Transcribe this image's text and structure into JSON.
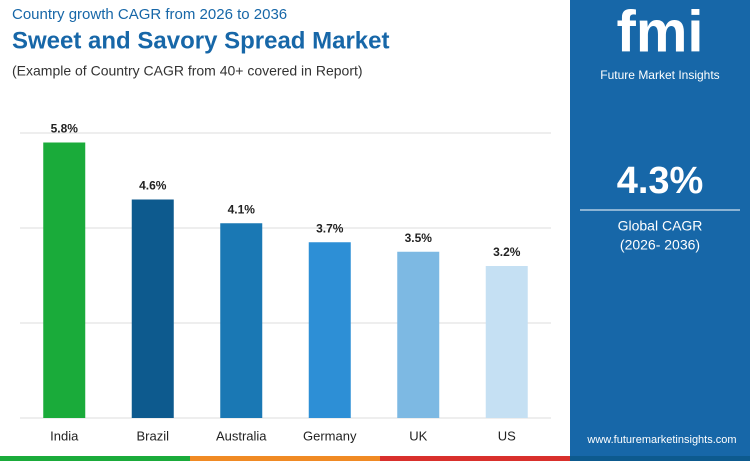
{
  "chart_data": {
    "type": "bar",
    "supertitle": "Country growth CAGR from 2026 to 2036",
    "title": "Sweet and Savory Spread Market",
    "subtitle": "(Example of Country CAGR from 40+ covered in Report)",
    "categories": [
      "India",
      "Brazil",
      "Australia",
      "Germany",
      "UK",
      "US"
    ],
    "values": [
      5.8,
      4.6,
      4.1,
      3.7,
      3.5,
      3.2
    ],
    "value_labels": [
      "5.8%",
      "4.6%",
      "4.1%",
      "3.7%",
      "3.5%",
      "3.2%"
    ],
    "colors": [
      "#1aab3a",
      "#0d5a8e",
      "#1a78b4",
      "#2d8fd6",
      "#7db9e3",
      "#c5e0f3"
    ],
    "ylim": [
      0,
      6
    ],
    "yticks": [
      0,
      2,
      4,
      6
    ],
    "grid": true
  },
  "panel": {
    "logo": "fmi",
    "brand": "Future Market Insights",
    "cagr": "4.3%",
    "cagr_label": "Global CAGR",
    "cagr_period": "(2026- 2036)",
    "website": "www.futuremarketinsights.com"
  }
}
